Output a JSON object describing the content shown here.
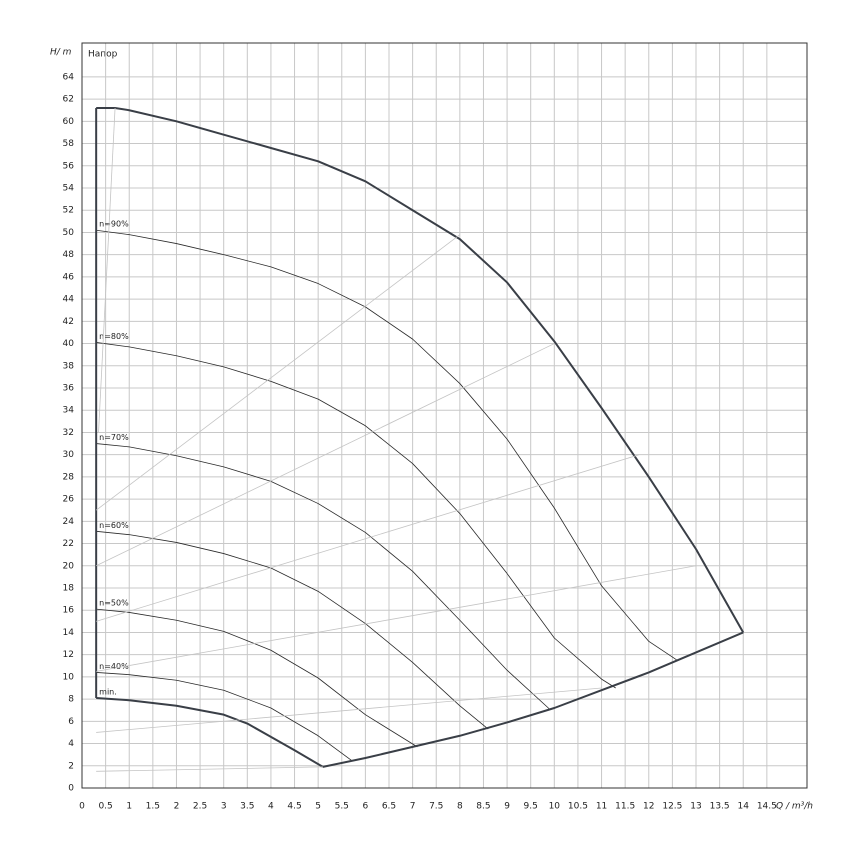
{
  "chart_data": {
    "type": "line",
    "x_label": "Q / m³/h",
    "y_label": "H/ m",
    "annotation": "Напор",
    "xlim": [
      0,
      15.35
    ],
    "ylim": [
      0,
      67.05
    ],
    "xticks": [
      0,
      0.5,
      1,
      1.5,
      2,
      2.5,
      3,
      3.5,
      4,
      4.5,
      5,
      5.5,
      6,
      6.5,
      7,
      7.5,
      8,
      8.5,
      9,
      9.5,
      10,
      10.5,
      11,
      11.5,
      12,
      12.5,
      13,
      13.5,
      14,
      14.5
    ],
    "yticks": [
      0,
      2,
      4,
      6,
      8,
      10,
      12,
      14,
      16,
      18,
      20,
      22,
      24,
      26,
      28,
      30,
      32,
      34,
      36,
      38,
      40,
      42,
      44,
      46,
      48,
      50,
      52,
      54,
      56,
      58,
      60,
      62,
      64
    ],
    "grid": true,
    "series": [
      {
        "color": "#3a3f47",
        "width": 2,
        "x": [
          0.3,
          0.7,
          1,
          2,
          3,
          4,
          5,
          6,
          7,
          8,
          9,
          10,
          11,
          12,
          13,
          14
        ],
        "values": [
          61.2,
          61.2,
          61,
          60,
          58.8,
          57.6,
          56.4,
          54.6,
          52,
          49.4,
          45.5,
          40.2,
          34.2,
          28,
          21.5,
          14
        ]
      },
      {
        "name": "n=90%",
        "color": "#2a2a2a",
        "width": 0.8,
        "x": [
          0.3,
          1,
          2,
          3,
          4,
          5,
          6,
          7,
          8,
          9,
          10,
          11,
          12,
          12.6
        ],
        "values": [
          50.2,
          49.8,
          49,
          48,
          46.9,
          45.4,
          43.3,
          40.4,
          36.4,
          31.4,
          25.2,
          18.2,
          13.2,
          11.5
        ]
      },
      {
        "name": "n=80%",
        "color": "#2a2a2a",
        "width": 0.8,
        "x": [
          0.3,
          1,
          2,
          3,
          4,
          5,
          6,
          7,
          8,
          9,
          10,
          11,
          11.3
        ],
        "values": [
          40.1,
          39.7,
          38.9,
          37.9,
          36.6,
          35,
          32.6,
          29.2,
          24.7,
          19.3,
          13.5,
          9.8,
          9
        ]
      },
      {
        "name": "n=70%",
        "color": "#2a2a2a",
        "width": 0.8,
        "x": [
          0.3,
          1,
          2,
          3,
          4,
          5,
          6,
          7,
          8,
          9,
          9.9
        ],
        "values": [
          31,
          30.7,
          29.9,
          28.9,
          27.6,
          25.6,
          23,
          19.5,
          15.1,
          10.6,
          7.1
        ]
      },
      {
        "name": "n=60%",
        "color": "#2a2a2a",
        "width": 0.8,
        "x": [
          0.3,
          1,
          2,
          3,
          4,
          5,
          6,
          7,
          8,
          8.6
        ],
        "values": [
          23.1,
          22.8,
          22.1,
          21.1,
          19.8,
          17.7,
          14.8,
          11.3,
          7.4,
          5.3
        ]
      },
      {
        "name": "n=50%",
        "color": "#2a2a2a",
        "width": 0.8,
        "x": [
          0.3,
          1,
          2,
          3,
          4,
          5,
          6,
          7.1
        ],
        "values": [
          16.1,
          15.8,
          15.1,
          14.1,
          12.4,
          9.9,
          6.6,
          3.7
        ]
      },
      {
        "name": "n=40%",
        "color": "#2a2a2a",
        "width": 0.8,
        "x": [
          0.3,
          1,
          2,
          3,
          4,
          5,
          5.7
        ],
        "values": [
          10.4,
          10.2,
          9.7,
          8.8,
          7.2,
          4.7,
          2.5
        ]
      },
      {
        "name": "min.",
        "color": "#3a3f47",
        "width": 2,
        "x": [
          0.3,
          1,
          2,
          3,
          3.5,
          4,
          4.5,
          5.1
        ],
        "values": [
          8.1,
          7.9,
          7.4,
          6.6,
          5.8,
          4.6,
          3.4,
          1.9
        ]
      },
      {
        "color": "#3a3f47",
        "width": 2,
        "x": [
          5.1,
          6,
          7,
          8,
          9,
          10,
          11,
          12,
          13,
          14
        ],
        "values": [
          1.9,
          2.7,
          3.7,
          4.7,
          5.9,
          7.2,
          8.8,
          10.4,
          12.2,
          14
        ]
      },
      {
        "color": "#3a3f47",
        "width": 2,
        "x": [
          0.3,
          0.3
        ],
        "values": [
          8.1,
          61.2
        ]
      },
      {
        "color": "#c4c4c4",
        "width": 0.8,
        "x": [
          0.7,
          0.35
        ],
        "values": [
          61.2,
          32
        ]
      },
      {
        "color": "#c4c4c4",
        "width": 0.8,
        "x": [
          0.3,
          8
        ],
        "values": [
          25,
          49.8
        ]
      },
      {
        "color": "#c4c4c4",
        "width": 0.8,
        "x": [
          0.3,
          10
        ],
        "values": [
          20,
          40
        ]
      },
      {
        "color": "#c4c4c4",
        "width": 0.8,
        "x": [
          0.3,
          11.8
        ],
        "values": [
          15,
          30
        ]
      },
      {
        "color": "#c4c4c4",
        "width": 0.8,
        "x": [
          0.3,
          13
        ],
        "values": [
          10.5,
          20
        ]
      },
      {
        "color": "#c4c4c4",
        "width": 0.8,
        "x": [
          0.3,
          11
        ],
        "values": [
          5,
          9
        ]
      },
      {
        "color": "#c4c4c4",
        "width": 0.8,
        "x": [
          0.3,
          5.1
        ],
        "values": [
          1.5,
          1.9
        ]
      }
    ]
  }
}
